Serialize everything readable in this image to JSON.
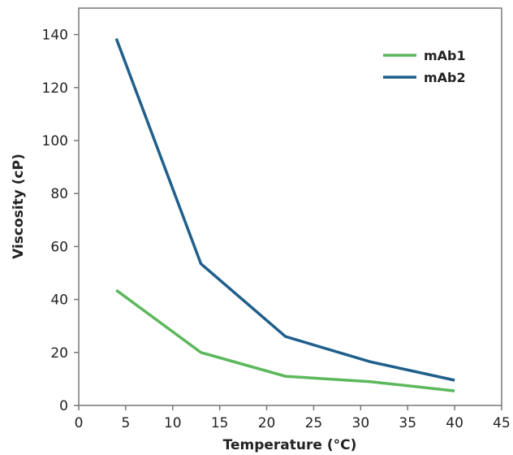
{
  "chart_data": {
    "type": "line",
    "title": "",
    "xlabel": "Temperature (°C)",
    "ylabel": "Viscosity (cP)",
    "xlim": [
      0,
      45
    ],
    "ylim": [
      0,
      150
    ],
    "xticks": [
      0,
      5,
      10,
      15,
      20,
      25,
      30,
      35,
      40,
      45
    ],
    "yticks": [
      0,
      20,
      40,
      60,
      80,
      100,
      120,
      140
    ],
    "grid": false,
    "legend": "top-right",
    "x": [
      4,
      13,
      22,
      31,
      40
    ],
    "series": [
      {
        "name": "mAb1",
        "color": "#5cb85c",
        "values": [
          43.5,
          20,
          11,
          9,
          5.5
        ]
      },
      {
        "name": "mAb2",
        "color": "#1f5f8b",
        "values": [
          138.5,
          53.5,
          26,
          16.5,
          9.5
        ]
      }
    ]
  }
}
